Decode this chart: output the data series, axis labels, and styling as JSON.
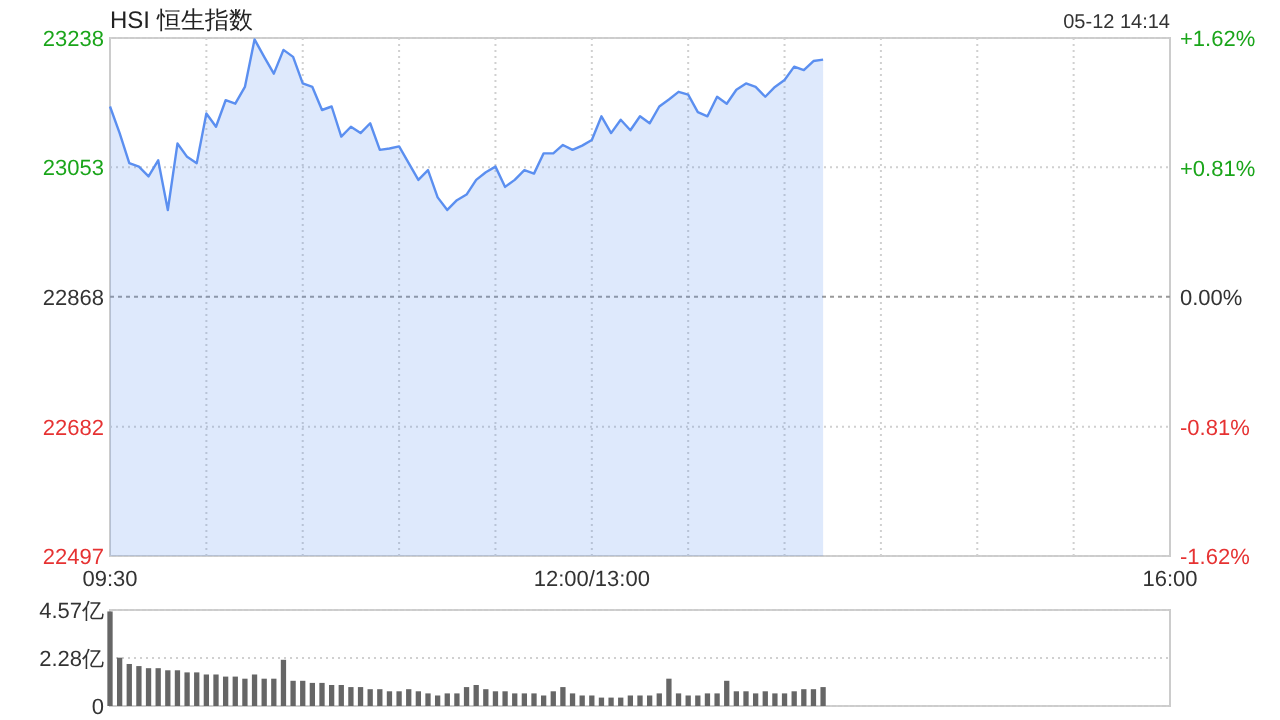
{
  "chart_data": [
    {
      "type": "area",
      "title": "HSI 恒生指数",
      "annotations": [
        "05-12 14:14"
      ],
      "grid": true,
      "categories": [
        "09:30",
        null,
        null,
        null,
        null,
        null,
        null,
        null,
        null,
        null,
        null,
        null,
        null,
        null,
        null,
        null,
        null,
        null,
        null,
        null,
        null,
        null,
        null,
        null,
        null,
        null,
        null,
        null,
        null,
        null,
        null,
        null,
        null,
        null,
        null,
        null,
        null,
        null,
        null,
        null,
        null,
        null,
        null,
        null,
        null,
        null,
        null,
        null,
        null,
        null,
        "12:00/13:00",
        null,
        null,
        null,
        null,
        null,
        null,
        null,
        null,
        null,
        null,
        null,
        null,
        null,
        null,
        null,
        null,
        null,
        null,
        null,
        null,
        null,
        null,
        null,
        null,
        null,
        null,
        null,
        null,
        null,
        null,
        null,
        null,
        null,
        null,
        null,
        null,
        null,
        null,
        null,
        null,
        null,
        null,
        null,
        null,
        null,
        null,
        null,
        null,
        null,
        null,
        null,
        null,
        null,
        null,
        null,
        null,
        null,
        null,
        null,
        "16:00"
      ],
      "ylim": [
        22497,
        23238
      ],
      "yticks": [
        22497,
        22682,
        22868,
        23053,
        23238
      ],
      "y2lim": [
        -1.62,
        1.62
      ],
      "y2ticks": [
        {
          "value": -1.62,
          "label": "-1.62%"
        },
        {
          "value": -0.81,
          "label": "-0.81%"
        },
        {
          "value": 0,
          "label": "0.00%"
        },
        {
          "value": 0.81,
          "label": "+0.81%"
        },
        {
          "value": 1.62,
          "label": "+1.62%"
        }
      ],
      "ref_lines": [
        {
          "axis": "y",
          "value": 22868,
          "line_style": "dashed",
          "color": "#999999"
        }
      ],
      "series": [
        {
          "color": "#5b8ff0",
          "values": [
            23140,
            23102,
            23059,
            23054,
            23040,
            23063,
            22992,
            23087,
            23068,
            23059,
            23130,
            23111,
            23149,
            23144,
            23168,
            23236,
            23211,
            23187,
            23221,
            23211,
            23173,
            23168,
            23135,
            23140,
            23097,
            23111,
            23102,
            23116,
            23078,
            23080,
            23083,
            23059,
            23035,
            23049,
            23010,
            22992,
            23006,
            23014,
            23035,
            23046,
            23054,
            23025,
            23035,
            23049,
            23044,
            23073,
            23073,
            23085,
            23078,
            23084,
            23092,
            23126,
            23102,
            23121,
            23106,
            23126,
            23116,
            23140,
            23150,
            23161,
            23157,
            23132,
            23126,
            23154,
            23144,
            23164,
            23173,
            23168,
            23154,
            23168,
            23178,
            23197,
            23192,
            23205,
            23207,
            null,
            null,
            null,
            null,
            null,
            null,
            null,
            null,
            null,
            null,
            null,
            null,
            null,
            null,
            null,
            null,
            null,
            null,
            null,
            null,
            null,
            null,
            null,
            null,
            null,
            null,
            null,
            null,
            null,
            null,
            null,
            null,
            null,
            null,
            null,
            null
          ]
        }
      ]
    },
    {
      "type": "bar",
      "tick_labels": "y",
      "grid": "y",
      "color": "#666666",
      "categories": [
        null,
        null,
        null,
        null,
        null,
        null,
        null,
        null,
        null,
        null,
        null,
        null,
        null,
        null,
        null,
        null,
        null,
        null,
        null,
        null,
        null,
        null,
        null,
        null,
        null,
        null,
        null,
        null,
        null,
        null,
        null,
        null,
        null,
        null,
        null,
        null,
        null,
        null,
        null,
        null,
        null,
        null,
        null,
        null,
        null,
        null,
        null,
        null,
        null,
        null,
        null,
        null,
        null,
        null,
        null,
        null,
        null,
        null,
        null,
        null,
        null,
        null,
        null,
        null,
        null,
        null,
        null,
        null,
        null,
        null,
        null,
        null,
        null,
        null,
        null,
        null,
        null,
        null,
        null,
        null,
        null,
        null,
        null,
        null,
        null,
        null,
        null,
        null,
        null,
        null,
        null,
        null,
        null,
        null,
        null,
        null,
        null,
        null,
        null,
        null,
        null,
        null,
        null,
        null,
        null,
        null,
        null,
        null,
        null,
        null,
        null
      ],
      "ylim": [
        0,
        4.57
      ],
      "yticks": [
        0,
        {
          "value": 2.28,
          "label": "2.28亿"
        },
        {
          "value": 4.57,
          "label": "4.57亿"
        }
      ],
      "values": [
        4.5,
        2.3,
        2.0,
        1.9,
        1.8,
        1.8,
        1.7,
        1.7,
        1.6,
        1.6,
        1.5,
        1.5,
        1.4,
        1.4,
        1.3,
        1.5,
        1.3,
        1.3,
        2.2,
        1.2,
        1.2,
        1.1,
        1.1,
        1.0,
        1.0,
        0.9,
        0.9,
        0.8,
        0.8,
        0.7,
        0.7,
        0.8,
        0.7,
        0.6,
        0.5,
        0.6,
        0.6,
        0.9,
        1.0,
        0.8,
        0.7,
        0.7,
        0.6,
        0.6,
        0.6,
        0.5,
        0.7,
        0.9,
        0.6,
        0.5,
        0.5,
        0.4,
        0.4,
        0.4,
        0.5,
        0.5,
        0.5,
        0.6,
        1.3,
        0.6,
        0.5,
        0.5,
        0.6,
        0.6,
        1.2,
        0.7,
        0.7,
        0.6,
        0.7,
        0.6,
        0.6,
        0.7,
        0.8,
        0.8,
        0.9,
        null,
        null,
        null,
        null,
        null,
        null,
        null,
        null,
        null,
        null,
        null,
        null,
        null,
        null,
        null,
        null,
        null,
        null,
        null,
        null,
        null,
        null,
        null,
        null,
        null,
        null,
        null,
        null,
        null,
        null,
        null,
        null,
        null,
        null,
        null,
        null
      ]
    }
  ]
}
